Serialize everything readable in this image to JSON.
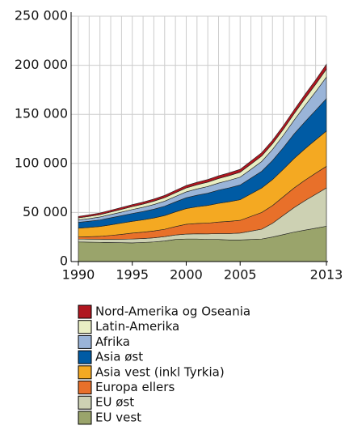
{
  "chart_data": {
    "type": "stacked_area",
    "x": [
      1990,
      1991,
      1992,
      1993,
      1994,
      1995,
      1996,
      1997,
      1998,
      1999,
      2000,
      2001,
      2002,
      2003,
      2004,
      2005,
      2006,
      2007,
      2008,
      2009,
      2010,
      2011,
      2012,
      2013
    ],
    "xlim": [
      1990,
      2013
    ],
    "xticks": [
      1990,
      1995,
      2000,
      2005,
      2013
    ],
    "ylim": [
      0,
      250000
    ],
    "yticks": [
      0,
      {
        "value": 50000,
        "label": "50 000"
      },
      {
        "value": 100000,
        "label": "100 000"
      },
      {
        "value": 150000,
        "label": "150 000"
      },
      {
        "value": 200000,
        "label": "200 000"
      },
      {
        "value": 250000,
        "label": "250 000"
      }
    ],
    "grid": true,
    "series": [
      {
        "name": "EU vest",
        "color": "#9aa46b",
        "values": [
          20000,
          19800,
          19600,
          19400,
          19200,
          19000,
          19500,
          20000,
          21000,
          22500,
          23000,
          23000,
          22500,
          22500,
          22000,
          22000,
          22500,
          23000,
          25000,
          27500,
          30000,
          32000,
          34000,
          36000
        ]
      },
      {
        "name": "EU øst",
        "color": "#cdd1b3",
        "values": [
          3000,
          3000,
          3100,
          3200,
          3500,
          4000,
          4000,
          4200,
          4400,
          4600,
          5000,
          5300,
          5700,
          6000,
          6500,
          7000,
          8500,
          10000,
          14000,
          19500,
          25000,
          30000,
          34500,
          39000
        ]
      },
      {
        "name": "Europa ellers",
        "color": "#e8702a",
        "values": [
          2000,
          2500,
          3000,
          4000,
          5000,
          6000,
          6500,
          7000,
          7500,
          8500,
          10000,
          10500,
          11000,
          11800,
          12500,
          13000,
          15000,
          17000,
          18000,
          19000,
          20000,
          20800,
          21500,
          22000
        ]
      },
      {
        "name": "Asia vest (inkl Tyrkia)",
        "color": "#f4a922",
        "values": [
          9000,
          9500,
          10000,
          10800,
          11500,
          12000,
          12500,
          13200,
          14000,
          15000,
          16000,
          17000,
          18000,
          19000,
          20000,
          21000,
          23000,
          25000,
          26500,
          28000,
          30000,
          32000,
          34000,
          36000
        ]
      },
      {
        "name": "Asia øst",
        "color": "#005ba4",
        "values": [
          6000,
          6300,
          6700,
          7200,
          7600,
          8000,
          8500,
          9000,
          9500,
          10200,
          11000,
          11800,
          12500,
          13500,
          14200,
          15000,
          16000,
          17000,
          19500,
          22000,
          25000,
          27500,
          30000,
          33000
        ]
      },
      {
        "name": "Afrika",
        "color": "#9ab4d8",
        "values": [
          2500,
          2700,
          3000,
          3300,
          3600,
          4000,
          4300,
          4700,
          5100,
          5500,
          6000,
          6400,
          6800,
          7200,
          7600,
          8000,
          9000,
          10000,
          11200,
          12500,
          14000,
          16500,
          19000,
          22000
        ]
      },
      {
        "name": "Latin-Amerika",
        "color": "#e9eec3",
        "values": [
          2000,
          2200,
          2400,
          2600,
          2800,
          3000,
          3200,
          3400,
          3600,
          3800,
          4000,
          4200,
          4400,
          4600,
          4800,
          5000,
          5200,
          5500,
          5800,
          6100,
          6500,
          7000,
          7500,
          8000
        ]
      },
      {
        "name": "Nord-Amerika og Oseania",
        "color": "#b0161f",
        "values": [
          1500,
          1600,
          1700,
          1800,
          1900,
          2000,
          2100,
          2200,
          2300,
          2400,
          2500,
          2600,
          2700,
          2800,
          2900,
          3000,
          3200,
          3500,
          3600,
          3800,
          4000,
          4300,
          4600,
          5000
        ]
      }
    ]
  }
}
